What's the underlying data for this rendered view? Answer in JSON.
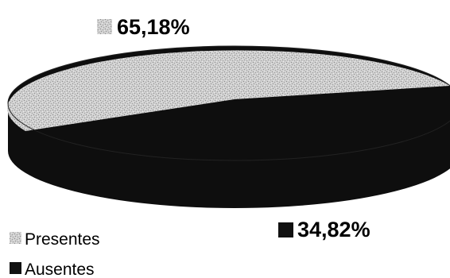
{
  "chart_data": {
    "type": "pie",
    "style": "3d",
    "slices": [
      {
        "name": "Presentes",
        "value": 65.18,
        "label": "65,18%",
        "color": "#c8c8c8"
      },
      {
        "name": "Ausentes",
        "value": 34.82,
        "label": "34,82%",
        "color": "#111111"
      }
    ],
    "legend": {
      "position": "bottom-left",
      "entries": [
        "Presentes",
        "Ausentes"
      ]
    }
  }
}
